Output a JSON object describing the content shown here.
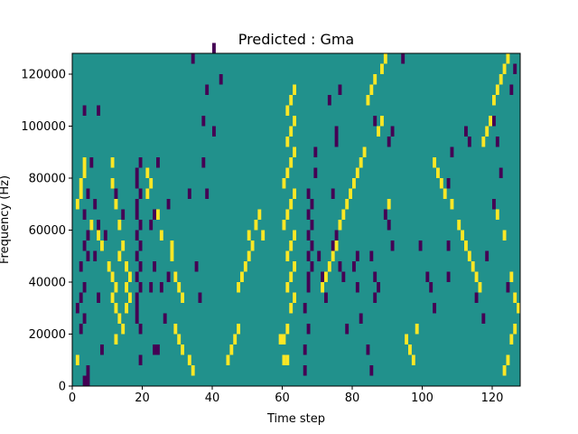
{
  "chart_data": {
    "type": "heatmap",
    "title": "Predicted : Gma",
    "xlabel": "Time step",
    "ylabel": "Frequency (Hz)",
    "xlim": [
      0,
      128
    ],
    "ylim": [
      0,
      128000
    ],
    "x_ticks": [
      {
        "value": 0,
        "label": "0"
      },
      {
        "value": 20,
        "label": "20"
      },
      {
        "value": 40,
        "label": "40"
      },
      {
        "value": 60,
        "label": "60"
      },
      {
        "value": 80,
        "label": "80"
      },
      {
        "value": 100,
        "label": "100"
      },
      {
        "value": 120,
        "label": "120"
      }
    ],
    "y_ticks": [
      {
        "value": 0,
        "label": "0"
      },
      {
        "value": 20000,
        "label": "20000"
      },
      {
        "value": 40000,
        "label": "40000"
      },
      {
        "value": 60000,
        "label": "60000"
      },
      {
        "value": 80000,
        "label": "80000"
      },
      {
        "value": 100000,
        "label": "100000"
      },
      {
        "value": 120000,
        "label": "120000"
      }
    ],
    "grid": false,
    "colormap": "viridis",
    "colors": {
      "background": "#21918c",
      "low": "#440154",
      "high": "#fde725"
    },
    "cell_width": 1,
    "cell_height": 4000,
    "cells_low": [
      [
        3,
        0
      ],
      [
        4,
        0
      ],
      [
        4,
        4000
      ],
      [
        2,
        20000
      ],
      [
        3,
        24000
      ],
      [
        1,
        28000
      ],
      [
        2,
        32000
      ],
      [
        3,
        36000
      ],
      [
        2,
        44000
      ],
      [
        4,
        48000
      ],
      [
        3,
        52000
      ],
      [
        4,
        56000
      ],
      [
        3,
        64000
      ],
      [
        6,
        68000
      ],
      [
        4,
        72000
      ],
      [
        5,
        84000
      ],
      [
        3,
        104000
      ],
      [
        7,
        104000
      ],
      [
        8,
        12000
      ],
      [
        7,
        32000
      ],
      [
        6,
        48000
      ],
      [
        7,
        60000
      ],
      [
        9,
        56000
      ],
      [
        18,
        24000
      ],
      [
        18,
        28000
      ],
      [
        18,
        32000
      ],
      [
        19,
        36000
      ],
      [
        18,
        40000
      ],
      [
        19,
        44000
      ],
      [
        18,
        48000
      ],
      [
        19,
        52000
      ],
      [
        18,
        56000
      ],
      [
        19,
        60000
      ],
      [
        18,
        64000
      ],
      [
        18,
        68000
      ],
      [
        19,
        72000
      ],
      [
        18,
        76000
      ],
      [
        18,
        80000
      ],
      [
        19,
        84000
      ],
      [
        19,
        20000
      ],
      [
        19,
        8000
      ],
      [
        12,
        72000
      ],
      [
        14,
        64000
      ],
      [
        23,
        12000
      ],
      [
        24,
        12000
      ],
      [
        22,
        36000
      ],
      [
        23,
        44000
      ],
      [
        22,
        60000
      ],
      [
        23,
        64000
      ],
      [
        24,
        84000
      ],
      [
        27,
        68000
      ],
      [
        25,
        36000
      ],
      [
        26,
        24000
      ],
      [
        27,
        40000
      ],
      [
        33,
        72000
      ],
      [
        35,
        44000
      ],
      [
        36,
        32000
      ],
      [
        37,
        84000
      ],
      [
        38,
        72000
      ],
      [
        37,
        100000
      ],
      [
        38,
        112000
      ],
      [
        40,
        96000
      ],
      [
        42,
        116000
      ],
      [
        40,
        128000
      ],
      [
        34,
        124000
      ],
      [
        66,
        4000
      ],
      [
        66,
        12000
      ],
      [
        67,
        20000
      ],
      [
        66,
        28000
      ],
      [
        67,
        36000
      ],
      [
        67,
        40000
      ],
      [
        68,
        44000
      ],
      [
        67,
        48000
      ],
      [
        68,
        52000
      ],
      [
        67,
        56000
      ],
      [
        68,
        60000
      ],
      [
        67,
        64000
      ],
      [
        68,
        68000
      ],
      [
        67,
        72000
      ],
      [
        69,
        80000
      ],
      [
        69,
        88000
      ],
      [
        70,
        48000
      ],
      [
        71,
        40000
      ],
      [
        72,
        32000
      ],
      [
        74,
        52000
      ],
      [
        75,
        56000
      ],
      [
        76,
        44000
      ],
      [
        77,
        40000
      ],
      [
        78,
        20000
      ],
      [
        75,
        96000
      ],
      [
        75,
        92000
      ],
      [
        74,
        72000
      ],
      [
        73,
        108000
      ],
      [
        76,
        112000
      ],
      [
        80,
        44000
      ],
      [
        81,
        36000
      ],
      [
        81,
        48000
      ],
      [
        82,
        24000
      ],
      [
        84,
        12000
      ],
      [
        85,
        4000
      ],
      [
        86,
        40000
      ],
      [
        87,
        36000
      ],
      [
        86,
        32000
      ],
      [
        85,
        48000
      ],
      [
        86,
        100000
      ],
      [
        90,
        92000
      ],
      [
        91,
        96000
      ],
      [
        89,
        64000
      ],
      [
        90,
        60000
      ],
      [
        91,
        52000
      ],
      [
        94,
        124000
      ],
      [
        99,
        52000
      ],
      [
        101,
        40000
      ],
      [
        102,
        36000
      ],
      [
        103,
        28000
      ],
      [
        107,
        40000
      ],
      [
        107,
        52000
      ],
      [
        107,
        76000
      ],
      [
        108,
        88000
      ],
      [
        112,
        96000
      ],
      [
        113,
        92000
      ],
      [
        115,
        32000
      ],
      [
        117,
        24000
      ],
      [
        118,
        48000
      ],
      [
        120,
        68000
      ],
      [
        122,
        80000
      ],
      [
        124,
        36000
      ],
      [
        121,
        92000
      ],
      [
        120,
        100000
      ],
      [
        125,
        112000
      ],
      [
        126,
        120000
      ]
    ],
    "cells_high": [
      [
        1,
        8000
      ],
      [
        1,
        68000
      ],
      [
        2,
        72000
      ],
      [
        2,
        76000
      ],
      [
        3,
        80000
      ],
      [
        3,
        84000
      ],
      [
        5,
        60000
      ],
      [
        7,
        56000
      ],
      [
        8,
        52000
      ],
      [
        10,
        44000
      ],
      [
        11,
        40000
      ],
      [
        12,
        36000
      ],
      [
        11,
        32000
      ],
      [
        12,
        28000
      ],
      [
        13,
        24000
      ],
      [
        14,
        20000
      ],
      [
        12,
        16000
      ],
      [
        11,
        84000
      ],
      [
        11,
        76000
      ],
      [
        12,
        68000
      ],
      [
        13,
        60000
      ],
      [
        14,
        52000
      ],
      [
        13,
        48000
      ],
      [
        15,
        44000
      ],
      [
        16,
        40000
      ],
      [
        15,
        36000
      ],
      [
        16,
        32000
      ],
      [
        15,
        28000
      ],
      [
        21,
        80000
      ],
      [
        22,
        76000
      ],
      [
        21,
        72000
      ],
      [
        24,
        64000
      ],
      [
        25,
        56000
      ],
      [
        28,
        52000
      ],
      [
        28,
        48000
      ],
      [
        29,
        40000
      ],
      [
        30,
        36000
      ],
      [
        31,
        32000
      ],
      [
        29,
        20000
      ],
      [
        30,
        16000
      ],
      [
        31,
        12000
      ],
      [
        33,
        8000
      ],
      [
        34,
        4000
      ],
      [
        44,
        8000
      ],
      [
        45,
        12000
      ],
      [
        46,
        16000
      ],
      [
        47,
        20000
      ],
      [
        47,
        36000
      ],
      [
        48,
        40000
      ],
      [
        49,
        44000
      ],
      [
        50,
        48000
      ],
      [
        51,
        52000
      ],
      [
        50,
        56000
      ],
      [
        52,
        60000
      ],
      [
        53,
        64000
      ],
      [
        54,
        56000
      ],
      [
        60,
        8000
      ],
      [
        61,
        8000
      ],
      [
        59,
        16000
      ],
      [
        60,
        16000
      ],
      [
        61,
        20000
      ],
      [
        62,
        28000
      ],
      [
        63,
        32000
      ],
      [
        61,
        36000
      ],
      [
        62,
        40000
      ],
      [
        63,
        44000
      ],
      [
        61,
        48000
      ],
      [
        62,
        52000
      ],
      [
        63,
        56000
      ],
      [
        60,
        60000
      ],
      [
        61,
        64000
      ],
      [
        62,
        68000
      ],
      [
        63,
        72000
      ],
      [
        60,
        76000
      ],
      [
        61,
        80000
      ],
      [
        62,
        84000
      ],
      [
        63,
        88000
      ],
      [
        61,
        92000
      ],
      [
        62,
        96000
      ],
      [
        63,
        100000
      ],
      [
        61,
        104000
      ],
      [
        62,
        108000
      ],
      [
        63,
        112000
      ],
      [
        71,
        36000
      ],
      [
        72,
        40000
      ],
      [
        73,
        44000
      ],
      [
        74,
        48000
      ],
      [
        75,
        52000
      ],
      [
        76,
        60000
      ],
      [
        77,
        64000
      ],
      [
        78,
        68000
      ],
      [
        79,
        72000
      ],
      [
        80,
        76000
      ],
      [
        81,
        80000
      ],
      [
        82,
        84000
      ],
      [
        83,
        88000
      ],
      [
        87,
        96000
      ],
      [
        88,
        100000
      ],
      [
        84,
        108000
      ],
      [
        85,
        112000
      ],
      [
        86,
        116000
      ],
      [
        88,
        120000
      ],
      [
        89,
        124000
      ],
      [
        90,
        68000
      ],
      [
        95,
        16000
      ],
      [
        96,
        12000
      ],
      [
        97,
        8000
      ],
      [
        98,
        20000
      ],
      [
        103,
        84000
      ],
      [
        104,
        80000
      ],
      [
        105,
        76000
      ],
      [
        106,
        72000
      ],
      [
        108,
        68000
      ],
      [
        110,
        60000
      ],
      [
        111,
        56000
      ],
      [
        112,
        52000
      ],
      [
        113,
        48000
      ],
      [
        114,
        44000
      ],
      [
        115,
        40000
      ],
      [
        116,
        36000
      ],
      [
        117,
        92000
      ],
      [
        118,
        96000
      ],
      [
        119,
        100000
      ],
      [
        120,
        108000
      ],
      [
        121,
        112000
      ],
      [
        122,
        116000
      ],
      [
        123,
        120000
      ],
      [
        124,
        124000
      ],
      [
        125,
        40000
      ],
      [
        126,
        32000
      ],
      [
        127,
        28000
      ],
      [
        126,
        20000
      ],
      [
        125,
        16000
      ],
      [
        124,
        8000
      ],
      [
        123,
        4000
      ],
      [
        121,
        64000
      ],
      [
        123,
        56000
      ]
    ]
  }
}
